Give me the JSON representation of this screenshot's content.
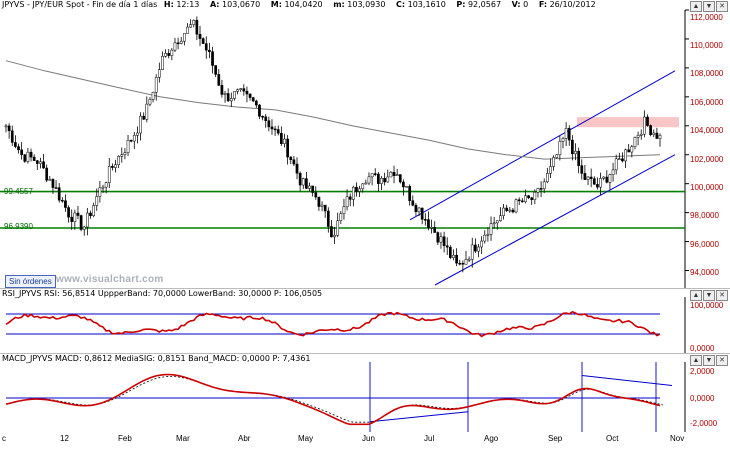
{
  "price_panel": {
    "symbol": "JPYVS",
    "title": "JPYVS - JPY/EUR Spot - Fin de día 1 días",
    "fields": [
      {
        "k": "H:",
        "v": "12:13"
      },
      {
        "k": "A:",
        "v": "103,0670"
      },
      {
        "k": "M:",
        "v": "104,0420"
      },
      {
        "k": "m:",
        "v": "103,0930"
      },
      {
        "k": "C:",
        "v": "103,1610"
      },
      {
        "k": "P:",
        "v": "92,0567"
      },
      {
        "k": "V:",
        "v": "0"
      },
      {
        "k": "F:",
        "v": "26/10/2012"
      }
    ],
    "y_labels": [
      "112,0000",
      "110,0000",
      "108,0000",
      "106,0000",
      "104,0000",
      "102,0000",
      "100,0000",
      "98,0000",
      "96,0000",
      "94,0000"
    ],
    "level_labels": [
      "99.4557",
      "96.9390"
    ],
    "orders_button": "Sin órdenes",
    "watermark": "www.visualchart.com"
  },
  "rsi_panel": {
    "header": "RSI_JPYVS  RSI: 56,8514  UppperBand: 70,0000  LowerBand: 30,0000  P: 106,0505",
    "y_labels": [
      "100,0000",
      "0,0000"
    ]
  },
  "macd_panel": {
    "header": "MACD_JPYVS  MACD: 0,8612  MediaSIG: 0,8151  Band_MACD: 0,0000  P: 7,4361",
    "y_labels": [
      "2,0000",
      "0,0000",
      "-2,0000"
    ]
  },
  "x_axis": [
    "c",
    "12",
    "Feb",
    "Mar",
    "Abr",
    "May",
    "Jun",
    "Jul",
    "Ago",
    "Sep",
    "Oct",
    "Nov"
  ],
  "window_buttons": [
    "▲",
    "▼",
    "✕"
  ],
  "colors": {
    "axis_labels": "#b00000",
    "support_lines": "#008000",
    "channel": "#0000cc",
    "ma": "#7a7a7a",
    "rsi": "#cc0000",
    "macd": "#cc0000",
    "zone": "#f6b8b8"
  },
  "chart_data": {
    "type": "candlestick",
    "ylim": [
      93,
      112
    ],
    "months": [
      "12",
      "Feb",
      "Mar",
      "Abr",
      "May",
      "Jun",
      "Jul",
      "Ago",
      "Sep",
      "Oct"
    ],
    "close": [
      104,
      102,
      101.6,
      100,
      98,
      97,
      99.5,
      101.5,
      103,
      105,
      108.5,
      110,
      111,
      109,
      106,
      106.2,
      105.5,
      104,
      102.5,
      100,
      99,
      96.5,
      99,
      100.5,
      100.3,
      101,
      99,
      97.5,
      96,
      94.2,
      95.5,
      97,
      98,
      98.7,
      99,
      101,
      103.6,
      100.5,
      99.8,
      101,
      102.5,
      104.2,
      103.2
    ],
    "ma": [
      108.5,
      107.8,
      107.2,
      106.6,
      106.0,
      105.6,
      105.3,
      105.1,
      104.6,
      104.0,
      103.5,
      103.0,
      102.4,
      102.0,
      101.7,
      101.8,
      101.9,
      102.0
    ],
    "levels": [
      99.4557,
      96.939
    ],
    "rsi_bands": [
      70,
      30
    ],
    "macd_zero": 0
  }
}
